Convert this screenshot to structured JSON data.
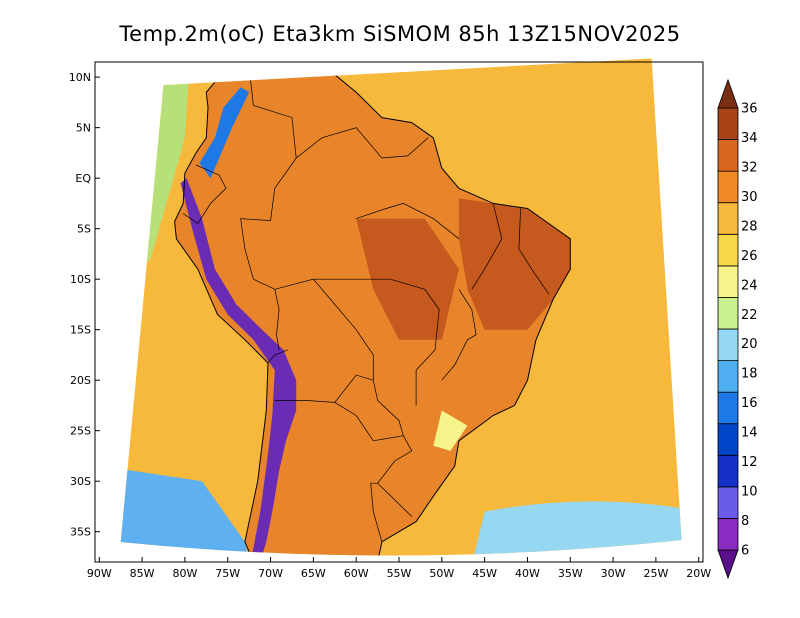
{
  "title": "Temp.2m(oC) Eta3km SiSMOM 85h 13Z15NOV2025",
  "map": {
    "lat_labels": [
      "10N",
      "5N",
      "EQ",
      "5S",
      "10S",
      "15S",
      "20S",
      "25S",
      "30S",
      "35S"
    ],
    "lon_labels": [
      "90W",
      "85W",
      "80W",
      "75W",
      "70W",
      "65W",
      "60W",
      "55W",
      "50W",
      "45W",
      "40W",
      "35W",
      "30W",
      "25W",
      "20W"
    ],
    "lat_range": [
      -38,
      11.5
    ],
    "lon_range": [
      -90.5,
      -19.5
    ],
    "ocean_color": "#F7B93C",
    "land_color": "#E8852A",
    "hot_color": "#C65A1E",
    "andes_color": "#6A2BB5",
    "south_ocean_color": "#5FB0F0",
    "north_pacific_color": "#B8E07A"
  },
  "colorbar": {
    "labels": [
      "6",
      "8",
      "10",
      "12",
      "14",
      "16",
      "18",
      "20",
      "22",
      "24",
      "26",
      "28",
      "30",
      "32",
      "34",
      "36"
    ],
    "colors": [
      "#5B0F8C",
      "#8A2BC2",
      "#6A5BE8",
      "#1530C8",
      "#0044C8",
      "#1E78E6",
      "#4FAEF0",
      "#96D8F2",
      "#C8F08C",
      "#F4F48A",
      "#F8D848",
      "#F7B93C",
      "#F08A24",
      "#D8661E",
      "#A84418",
      "#7A2E12"
    ]
  }
}
